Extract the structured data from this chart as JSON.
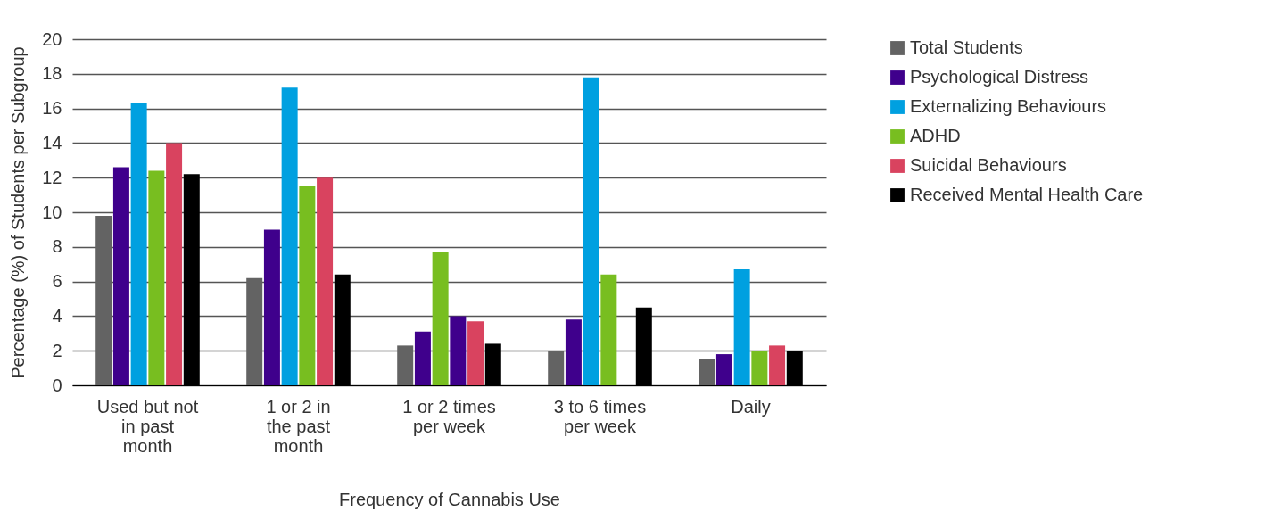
{
  "chart_data": {
    "type": "bar",
    "xlabel": "Frequency of Cannabis Use",
    "ylabel": "Percentage (%) of Students per Subgroup",
    "categories": [
      "Used but not in past month",
      "1 or 2 in the past month",
      "1 or 2 times per week",
      "3 to 6 times per week",
      "Daily"
    ],
    "series": [
      {
        "name": "Total Students",
        "color": "#636363",
        "values": [
          9.8,
          6.2,
          2.3,
          2.0,
          1.5
        ]
      },
      {
        "name": "Psychological Distress",
        "color": "#3f008c",
        "values": [
          12.6,
          9.0,
          3.1,
          3.8,
          1.8
        ]
      },
      {
        "name": "Externalizing Behaviours",
        "color": "#00a0e0",
        "colors": [
          "#00a0e0",
          "#00a0e0",
          "#78be20",
          "#00a0e0",
          "#00a0e0"
        ],
        "values": [
          16.3,
          17.2,
          7.7,
          17.8,
          6.7
        ]
      },
      {
        "name": "ADHD",
        "color": "#78be20",
        "colors": [
          "#78be20",
          "#78be20",
          "#3f008c",
          "#78be20",
          "#78be20"
        ],
        "values": [
          12.4,
          11.5,
          4.0,
          6.4,
          2.0
        ]
      },
      {
        "name": "Suicidal Behaviours",
        "color": "#d9435f",
        "values": [
          14.0,
          12.0,
          3.7,
          null,
          2.3
        ]
      },
      {
        "name": "Received Mental Health Care",
        "color": "#000000",
        "values": [
          12.2,
          6.4,
          2.4,
          4.5,
          2.0
        ]
      }
    ],
    "ylim": [
      0,
      20
    ],
    "yticks": [
      0,
      2,
      4,
      6,
      8,
      10,
      12,
      14,
      16,
      18,
      20
    ],
    "grid": "y",
    "legend": "right"
  }
}
